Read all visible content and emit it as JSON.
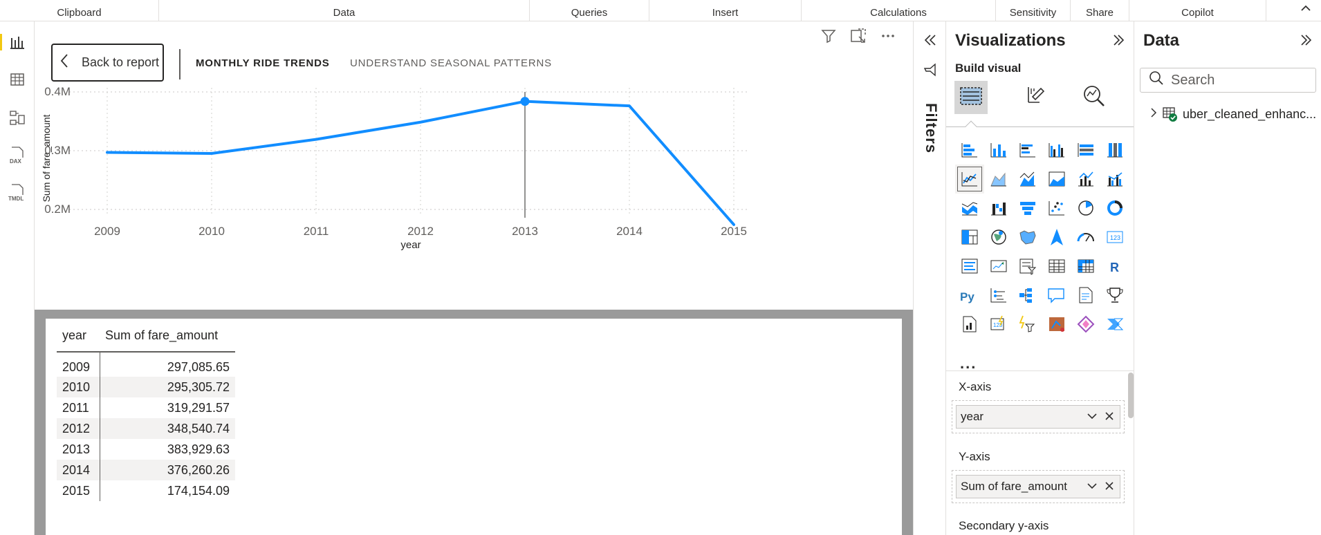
{
  "ribbon": {
    "groups": [
      "Clipboard",
      "Data",
      "Queries",
      "Insert",
      "Calculations",
      "Sensitivity",
      "Share",
      "Copilot"
    ]
  },
  "left_rail": {
    "items": [
      {
        "name": "report-view-icon",
        "active": true
      },
      {
        "name": "table-view-icon",
        "active": false
      },
      {
        "name": "model-view-icon",
        "active": false
      },
      {
        "name": "dax-query-view-icon",
        "active": false
      },
      {
        "name": "tmdl-view-icon",
        "active": false
      }
    ]
  },
  "canvas": {
    "back_button": "Back to report",
    "title": "MONTHLY RIDE TRENDS",
    "subtitle": "UNDERSTAND SEASONAL PATTERNS",
    "header_icons": [
      "filter-icon",
      "focus-mode-icon",
      "more-options-icon"
    ]
  },
  "chart_data": {
    "type": "line",
    "x": [
      2009,
      2010,
      2011,
      2012,
      2013,
      2014,
      2015
    ],
    "series": [
      {
        "name": "Sum of fare_amount",
        "values": [
          297085.65,
          295305.72,
          319291.57,
          348540.74,
          383929.63,
          376260.26,
          174154.09
        ]
      }
    ],
    "y_ticks": [
      {
        "value": 400000,
        "label": "0.4M"
      },
      {
        "value": 300000,
        "label": "0.3M"
      },
      {
        "value": 200000,
        "label": "0.2M"
      }
    ],
    "xlabel": "year",
    "ylabel": "Sum of fare_amount",
    "grid": true,
    "highlighted_x": 2013,
    "color": "#118dff"
  },
  "table": {
    "columns": [
      "year",
      "Sum of fare_amount"
    ],
    "rows": [
      [
        "2009",
        "297,085.65"
      ],
      [
        "2010",
        "295,305.72"
      ],
      [
        "2011",
        "319,291.57"
      ],
      [
        "2012",
        "348,540.74"
      ],
      [
        "2013",
        "383,929.63"
      ],
      [
        "2014",
        "376,260.26"
      ],
      [
        "2015",
        "174,154.09"
      ]
    ]
  },
  "filters_pane": {
    "label": "Filters"
  },
  "visualizations_pane": {
    "title": "Visualizations",
    "build_visual": "Build visual",
    "tabs": [
      "build-visual-icon",
      "format-visual-icon",
      "analytics-icon"
    ],
    "selected_visual": "line-chart-icon",
    "more": "...",
    "wells": [
      {
        "label": "X-axis",
        "value": "year"
      },
      {
        "label": "Y-axis",
        "value": "Sum of fare_amount"
      },
      {
        "label": "Secondary y-axis",
        "value": ""
      }
    ]
  },
  "data_pane": {
    "title": "Data",
    "search_placeholder": "Search",
    "tables": [
      "uber_cleaned_enhanc..."
    ]
  },
  "colors": {
    "accent": "#118dff",
    "rail_active": "#f2c811",
    "table_frame": "#9a9a9a"
  }
}
